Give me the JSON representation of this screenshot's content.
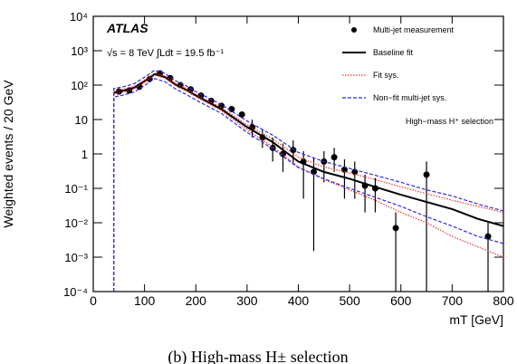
{
  "chart_data": {
    "type": "line",
    "y_label": "Weighted events / 20 GeV",
    "x_label": "mT [GeV]",
    "annotations": {
      "experiment": "ATLAS",
      "energy": "√s = 8 TeV ∫Ldt = 19.5 fb⁻¹",
      "selection": "High−mass H⁺ selection"
    },
    "caption": "(b) High-mass H± selection",
    "xlim": [
      0,
      800
    ],
    "xticks": [
      0,
      100,
      200,
      300,
      400,
      500,
      600,
      700,
      800
    ],
    "ylim": [
      0.0001,
      10000
    ],
    "log_y": true,
    "yticks": [
      {
        "value": 0.0001,
        "label": "10⁻⁴"
      },
      {
        "value": 0.001,
        "label": "10⁻³"
      },
      {
        "value": 0.01,
        "label": "10⁻²"
      },
      {
        "value": 0.1,
        "label": "10⁻¹"
      },
      1,
      10,
      {
        "value": 100,
        "label": "10²"
      },
      {
        "value": 1000,
        "label": "10³"
      },
      {
        "value": 10000,
        "label": "10⁴"
      }
    ],
    "legend": "top-right",
    "series": [
      {
        "name": "Multi-jet measurement",
        "style": "points",
        "color": "#000000",
        "x": [
          50,
          70,
          90,
          110,
          130,
          150,
          170,
          190,
          210,
          230,
          250,
          270,
          290,
          310,
          330,
          350,
          370,
          390,
          410,
          430,
          450,
          470,
          490,
          510,
          530,
          550,
          590,
          650,
          770
        ],
        "values": [
          65,
          70,
          90,
          150,
          220,
          160,
          100,
          75,
          50,
          35,
          25,
          20,
          14,
          6,
          3,
          1.5,
          1,
          1.3,
          0.6,
          0.3,
          0.6,
          0.8,
          0.35,
          0.3,
          0.12,
          0.1,
          0.007,
          0.25,
          0.004
        ],
        "lower": [
          60,
          65,
          84,
          140,
          208,
          150,
          94,
          70,
          46,
          32,
          23,
          18,
          12.5,
          3,
          1.5,
          0.6,
          0.3,
          0.5,
          0.05,
          0.0015,
          0.15,
          0.3,
          0.05,
          0.05,
          0.02,
          0.02,
          0.0001,
          0.0001,
          0.0001
        ],
        "upper": [
          70,
          75,
          96,
          160,
          232,
          170,
          106,
          80,
          54,
          38,
          27,
          22,
          15.5,
          10,
          5,
          3,
          2,
          2.5,
          1.2,
          0.8,
          1.2,
          1.5,
          0.7,
          0.6,
          0.25,
          0.2,
          0.02,
          0.6,
          0.01
        ]
      },
      {
        "name": "Baseline fit",
        "style": "line",
        "color": "#000000",
        "x": [
          40,
          60,
          80,
          100,
          120,
          140,
          160,
          180,
          200,
          250,
          300,
          350,
          400,
          450,
          500,
          550,
          600,
          650,
          700,
          750,
          800
        ],
        "values": [
          60,
          70,
          85,
          130,
          210,
          170,
          105,
          75,
          50,
          20,
          6,
          2.2,
          0.6,
          0.3,
          0.19,
          0.11,
          0.065,
          0.04,
          0.025,
          0.013,
          0.008
        ]
      },
      {
        "name": "Fit sys.",
        "style": "dotted",
        "color": "#e8352e",
        "x": [
          40,
          60,
          80,
          100,
          120,
          140,
          160,
          180,
          200,
          250,
          300,
          350,
          400,
          450,
          500,
          550,
          600,
          650,
          700,
          750,
          800
        ],
        "upper": [
          65,
          76,
          92,
          140,
          225,
          182,
          113,
          81,
          54,
          22,
          7,
          2.7,
          0.8,
          0.42,
          0.28,
          0.18,
          0.11,
          0.07,
          0.045,
          0.03,
          0.02
        ],
        "lower": [
          55,
          64,
          78,
          120,
          195,
          158,
          97,
          69,
          46,
          18,
          5,
          1.6,
          0.42,
          0.18,
          0.09,
          0.045,
          0.02,
          0.01,
          0.004,
          0.002,
          0.001
        ]
      },
      {
        "name": "Non−fit multi-jet sys.",
        "style": "dashed",
        "color": "#2b2bd9",
        "x": [
          40,
          40,
          60,
          80,
          100,
          120,
          140,
          160,
          180,
          200,
          250,
          300,
          350,
          400,
          450,
          500,
          550,
          600,
          650,
          700,
          750,
          800
        ],
        "upper": [
          0.0001,
          80,
          90,
          110,
          170,
          270,
          220,
          135,
          97,
          65,
          27,
          9,
          3.5,
          1.1,
          0.6,
          0.38,
          0.24,
          0.15,
          0.09,
          0.06,
          0.035,
          0.022
        ],
        "lower": [
          0.0001,
          45,
          52,
          63,
          97,
          155,
          125,
          78,
          55,
          37,
          15,
          4.2,
          1.4,
          0.4,
          0.19,
          0.1,
          0.055,
          0.03,
          0.015,
          0.008,
          0.004,
          0.0025
        ]
      }
    ]
  }
}
